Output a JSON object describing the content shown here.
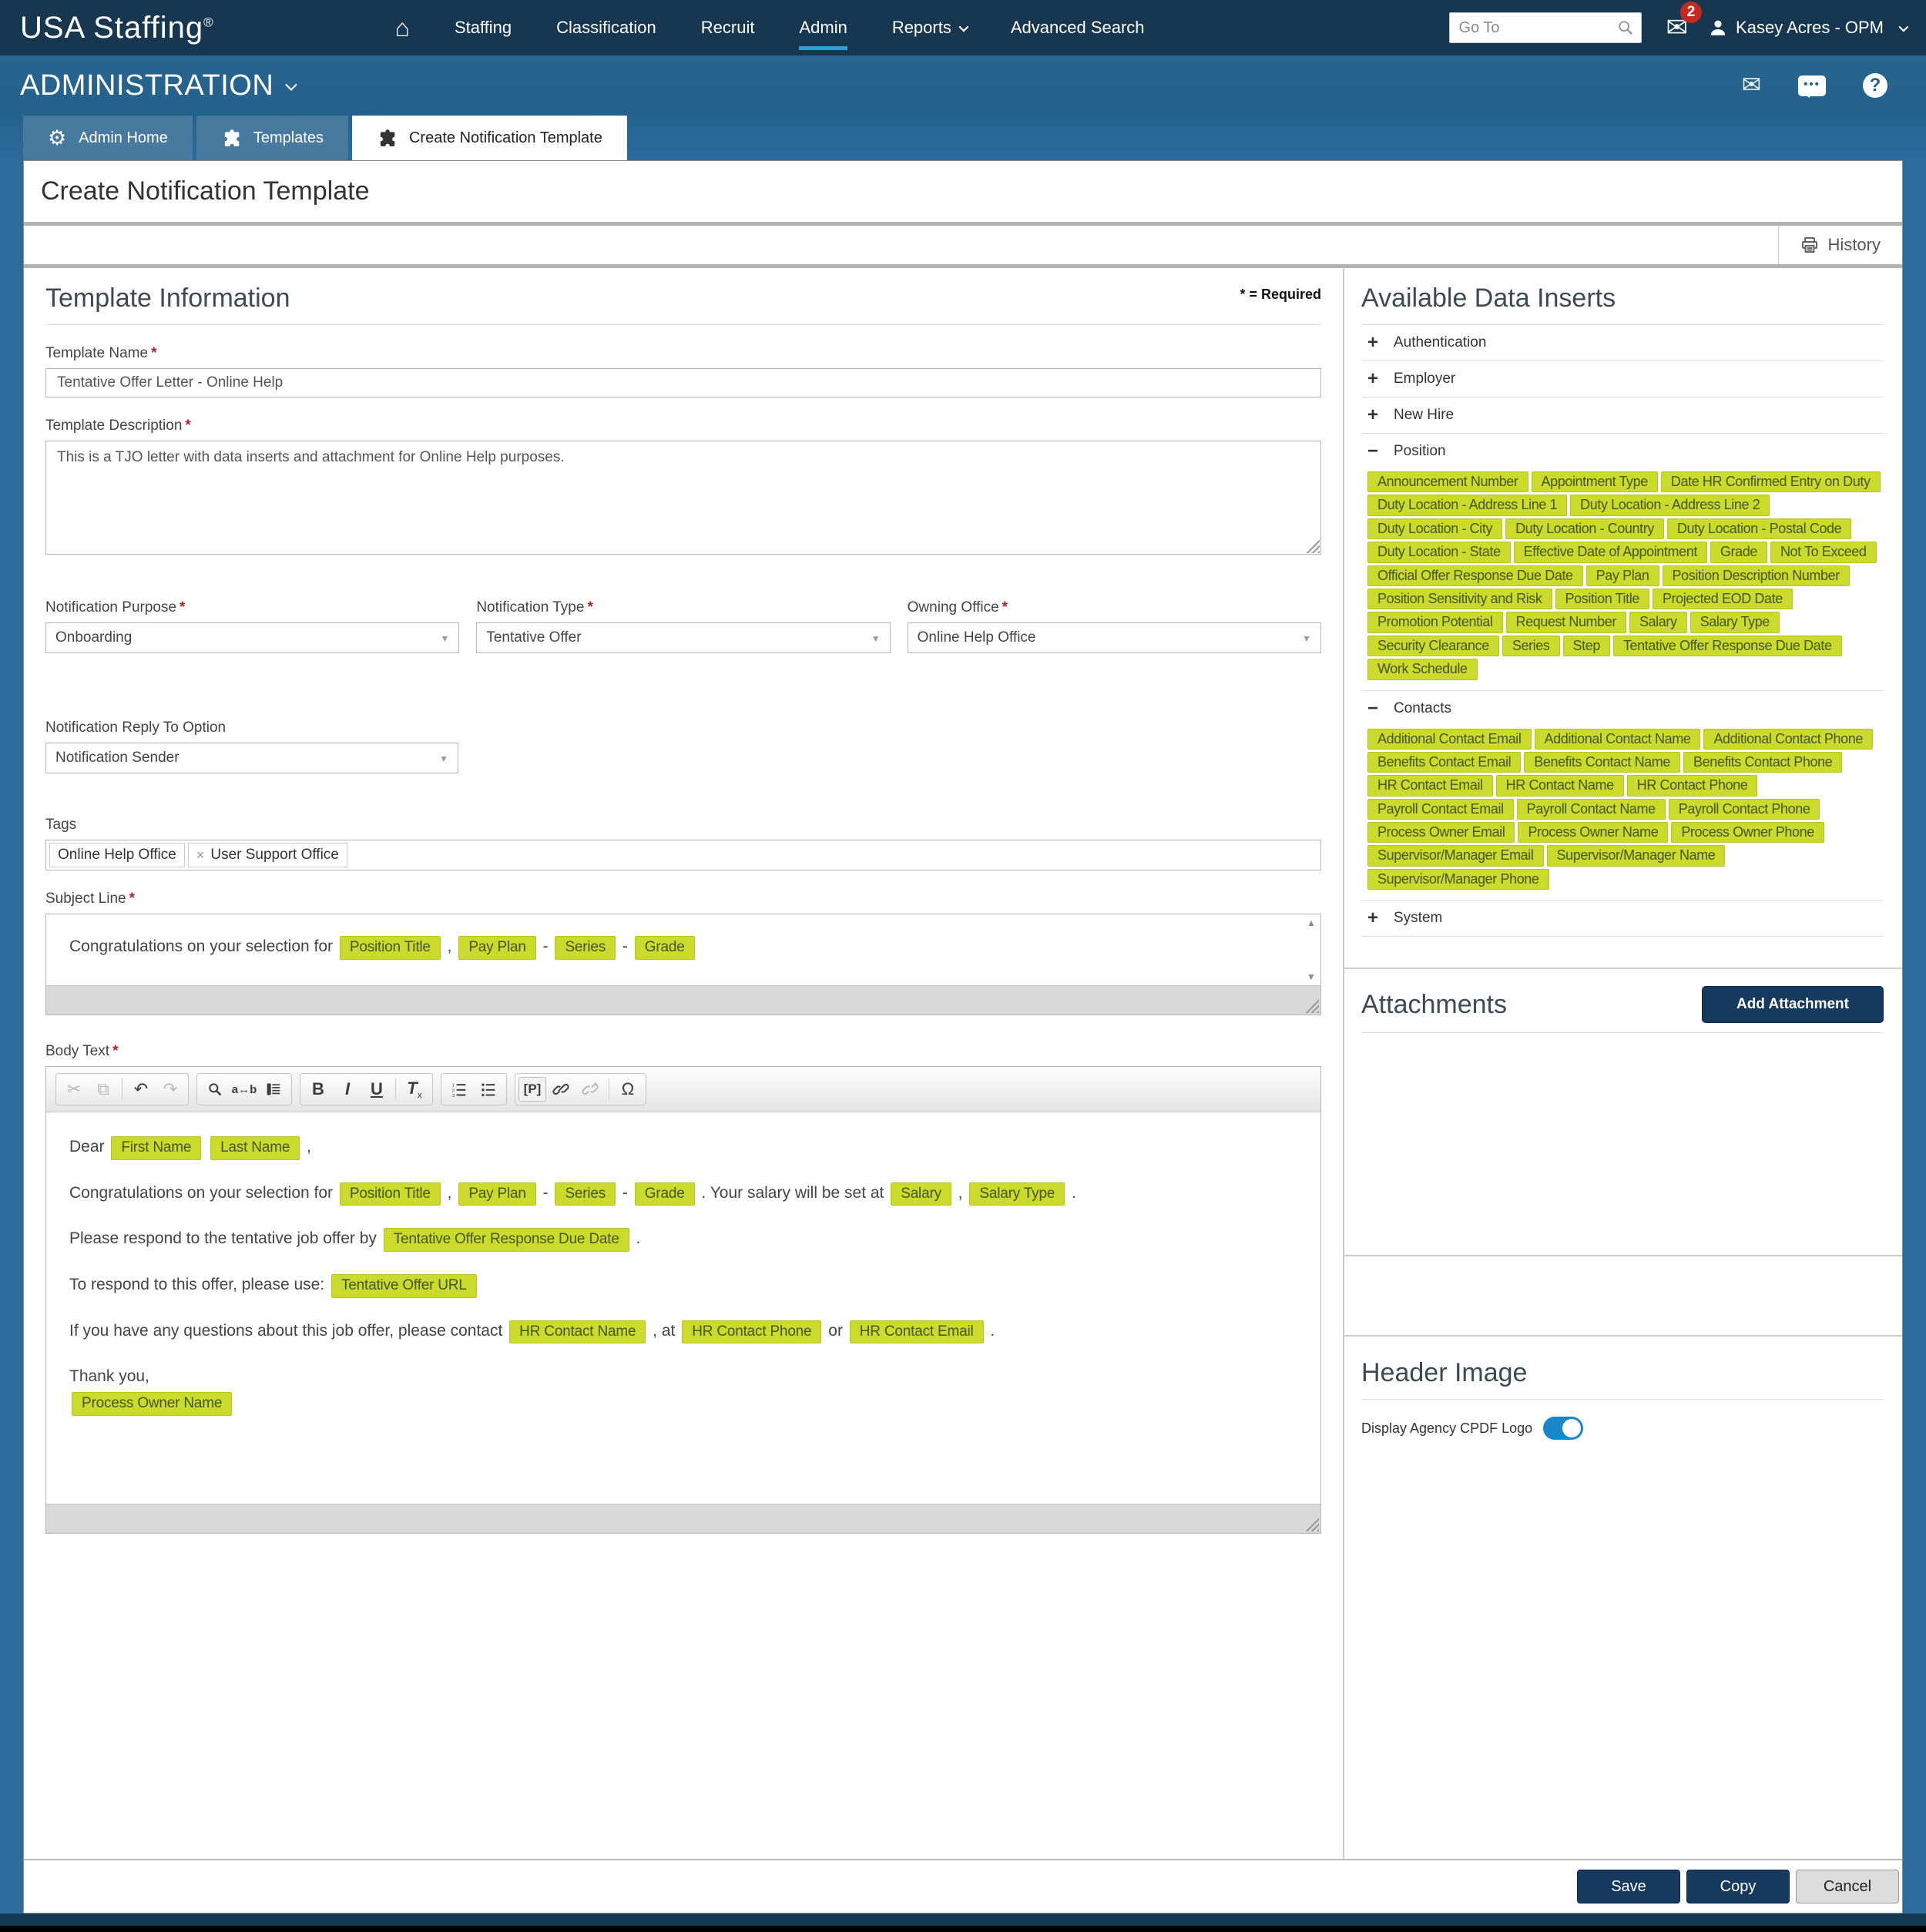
{
  "colors": {
    "navy": "#16374F",
    "header_blue": "#27658F",
    "page_blue": "#2D6B9E",
    "tab_blue": "#48799F",
    "nav_active_underline": "#2D9FD9",
    "highlight_bg": "#CBDB2B",
    "highlight_border": "#B6C520",
    "highlight_text": "#47551E",
    "button_navy": "#163A5F",
    "toggle_blue": "#1787C9",
    "badge_red": "#C52A21"
  },
  "topnav": {
    "brand": "USA Staffing",
    "brand_mark": "®",
    "items": [
      "Staffing",
      "Classification",
      "Recruit",
      "Admin",
      "Reports",
      "Advanced Search"
    ],
    "active_item": "Admin",
    "dropdown_items": [
      "Reports"
    ],
    "goto_placeholder": "Go To",
    "mail_badge": "2",
    "user": "Kasey Acres - OPM",
    "icons": [
      "home-icon",
      "search-icon",
      "mail-icon",
      "user-icon",
      "chevron-down-icon"
    ]
  },
  "subnav": {
    "title": "ADMINISTRATION",
    "icons": [
      "envelope-icon",
      "chat-icon",
      "help-icon"
    ]
  },
  "tabs": [
    {
      "label": "Admin Home",
      "icon": "gear",
      "active": false
    },
    {
      "label": "Templates",
      "icon": "puzzle",
      "active": false
    },
    {
      "label": "Create Notification Template",
      "icon": "puzzle",
      "active": true
    }
  ],
  "page": {
    "title": "Create Notification Template",
    "history_label": "History",
    "history_icon": "printer-icon",
    "required_note": "* = Required"
  },
  "form": {
    "section_title": "Template Information",
    "template_name": {
      "label": "Template Name",
      "value": "Tentative Offer Letter - Online Help"
    },
    "template_description": {
      "label": "Template Description",
      "value": "This is a TJO letter with data inserts and attachment for Online Help purposes."
    },
    "notification_purpose": {
      "label": "Notification Purpose",
      "value": "Onboarding"
    },
    "notification_type": {
      "label": "Notification Type",
      "value": "Tentative Offer"
    },
    "owning_office": {
      "label": "Owning Office",
      "value": "Online Help Office"
    },
    "reply_to": {
      "label": "Notification Reply To Option",
      "value": "Notification Sender"
    },
    "tags": {
      "label": "Tags",
      "chips": [
        {
          "label": "Online Help Office",
          "removable": false
        },
        {
          "label": "User Support Office",
          "removable": true
        }
      ]
    },
    "subject": {
      "label": "Subject Line",
      "segments": [
        {
          "t": "Congratulations on your selection for "
        },
        {
          "i": "Position Title"
        },
        {
          "t": " , "
        },
        {
          "i": "Pay Plan"
        },
        {
          "t": " - "
        },
        {
          "i": "Series"
        },
        {
          "t": " - "
        },
        {
          "i": "Grade"
        }
      ]
    },
    "body": {
      "label": "Body Text",
      "paragraphs": [
        [
          {
            "t": "Dear "
          },
          {
            "i": "First Name"
          },
          {
            "t": " "
          },
          {
            "i": "Last Name"
          },
          {
            "t": " ,"
          }
        ],
        [
          {
            "t": "Congratulations on your selection for "
          },
          {
            "i": "Position Title"
          },
          {
            "t": " , "
          },
          {
            "i": "Pay Plan"
          },
          {
            "t": " - "
          },
          {
            "i": "Series"
          },
          {
            "t": " - "
          },
          {
            "i": "Grade"
          },
          {
            "t": " . Your salary will be set at "
          },
          {
            "i": "Salary"
          },
          {
            "t": " , "
          },
          {
            "i": "Salary Type"
          },
          {
            "t": " ."
          }
        ],
        [
          {
            "t": "Please respond to the tentative job offer by "
          },
          {
            "i": "Tentative Offer Response Due Date"
          },
          {
            "t": " ."
          }
        ],
        [
          {
            "t": "To respond to this offer, please use: "
          },
          {
            "i": "Tentative Offer URL"
          }
        ],
        [
          {
            "t": "If you have any questions about this job offer, please contact "
          },
          {
            "i": "HR Contact Name"
          },
          {
            "t": " , at "
          },
          {
            "i": "HR Contact Phone"
          },
          {
            "t": " or "
          },
          {
            "i": "HR Contact Email"
          },
          {
            "t": " ."
          }
        ],
        [
          {
            "t": "Thank you,"
          }
        ],
        [
          {
            "i": "Process Owner Name"
          }
        ]
      ]
    }
  },
  "editor": {
    "toolbar_groups": [
      [
        "cut",
        "copy",
        "|",
        "undo",
        "redo"
      ],
      [
        "find",
        "replace",
        "select-all"
      ],
      [
        "bold",
        "italic",
        "underline",
        "|",
        "remove-format"
      ],
      [
        "numbered-list",
        "bulleted-list"
      ],
      [
        "paragraph",
        "link",
        "unlink",
        "|",
        "special-char"
      ]
    ],
    "disabled": [
      "cut",
      "copy",
      "redo",
      "unlink"
    ]
  },
  "inserts_panel": {
    "title": "Available Data Inserts",
    "groups": [
      {
        "label": "Authentication",
        "expanded": false,
        "tags": []
      },
      {
        "label": "Employer",
        "expanded": false,
        "tags": []
      },
      {
        "label": "New Hire",
        "expanded": false,
        "tags": []
      },
      {
        "label": "Position",
        "expanded": true,
        "tags": [
          "Announcement Number",
          "Appointment Type",
          "Date HR Confirmed Entry on Duty",
          "Duty Location - Address Line 1",
          "Duty Location - Address Line 2",
          "Duty Location - City",
          "Duty Location - Country",
          "Duty Location - Postal Code",
          "Duty Location - State",
          "Effective Date of Appointment",
          "Grade",
          "Not To Exceed",
          "Official Offer Response Due Date",
          "Pay Plan",
          "Position Description Number",
          "Position Sensitivity and Risk",
          "Position Title",
          "Projected EOD Date",
          "Promotion Potential",
          "Request Number",
          "Salary",
          "Salary Type",
          "Security Clearance",
          "Series",
          "Step",
          "Tentative Offer Response Due Date",
          "Work Schedule"
        ]
      },
      {
        "label": "Contacts",
        "expanded": true,
        "tags": [
          "Additional Contact Email",
          "Additional Contact Name",
          "Additional Contact Phone",
          "Benefits Contact Email",
          "Benefits Contact Name",
          "Benefits Contact Phone",
          "HR Contact Email",
          "HR Contact Name",
          "HR Contact Phone",
          "Payroll Contact Email",
          "Payroll Contact Name",
          "Payroll Contact Phone",
          "Process Owner Email",
          "Process Owner Name",
          "Process Owner Phone",
          "Supervisor/Manager Email",
          "Supervisor/Manager Name",
          "Supervisor/Manager Phone"
        ]
      },
      {
        "label": "System",
        "expanded": false,
        "tags": []
      }
    ]
  },
  "attachments": {
    "title": "Attachments",
    "add_button": "Add Attachment"
  },
  "header_image": {
    "title": "Header Image",
    "toggle_label": "Display Agency CPDF Logo",
    "toggle_on": true
  },
  "footer": {
    "save": "Save",
    "copy": "Copy",
    "cancel": "Cancel"
  }
}
